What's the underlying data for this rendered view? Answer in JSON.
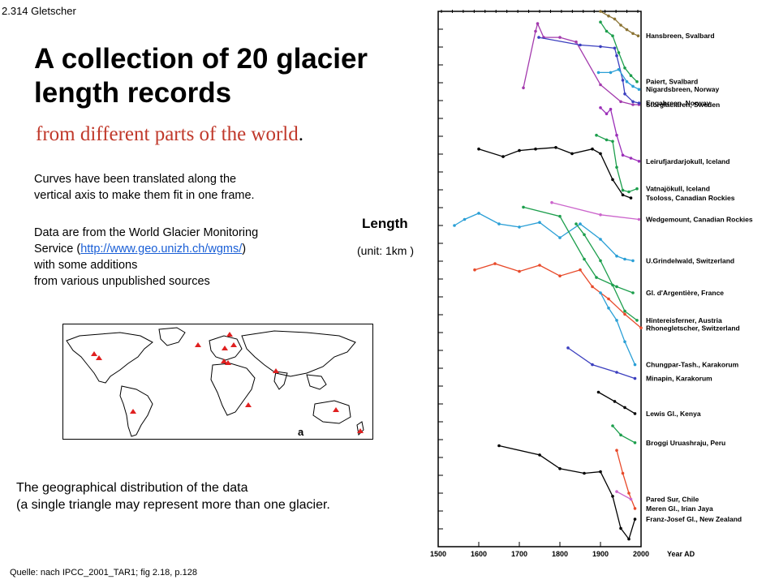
{
  "slide_ref": "2.314  Gletscher",
  "title": "A collection of 20 glacier length records",
  "subtitle": "from different parts of the world",
  "subtitle_end": ".",
  "paragraph1": [
    "Curves have been translated along the",
    "vertical axis to make them fit in one frame."
  ],
  "paragraph2": {
    "line1": "Data are from the World Glacier Monitoring",
    "service_pre": "Service (",
    "link": "http://www.geo.unizh.ch/wgms/",
    "service_post": ")",
    "line3": "with some additions",
    "line4": " from various unpublished sources"
  },
  "length_label": "Length",
  "unit_label": "(unit: 1km )",
  "map_label": "a",
  "geo_text": [
    "The geographical distribution of the data",
    "(a single triangle may represent more than one glacier."
  ],
  "source": "Quelle: nach  IPCC_2001_TAR1;  fig 2.18, p.128",
  "colors": {
    "subtitle": "#c0392b",
    "link": "#1a5fd6",
    "triangles": "#e02020"
  },
  "chart_data": {
    "type": "line",
    "x_label": "Year AD",
    "x_ticks": [
      1500,
      1600,
      1700,
      1800,
      1900,
      2000
    ],
    "xlim": [
      1500,
      2000
    ],
    "ylabel": "Length",
    "unit": "(unit: 1km )",
    "note": "Curves have been translated along the vertical axis to make them fit in one frame.",
    "series": [
      {
        "name": "Hansbreen, Svalbard",
        "color": "#8b7333",
        "points": [
          [
            1900,
            -0.0
          ],
          [
            1920,
            -0.6
          ],
          [
            1935,
            -1.0
          ],
          [
            1950,
            -1.8
          ],
          [
            1965,
            -2.4
          ],
          [
            1980,
            -2.9
          ],
          [
            1993,
            -3.2
          ]
        ]
      },
      {
        "name": "Paiert, Svalbard",
        "color": "#1c9e4c",
        "points": [
          [
            1900,
            -1.4
          ],
          [
            1915,
            -2.6
          ],
          [
            1930,
            -3.2
          ],
          [
            1945,
            -5.4
          ],
          [
            1960,
            -7.4
          ],
          [
            1975,
            -8.4
          ],
          [
            1990,
            -9.2
          ]
        ]
      },
      {
        "name": "Storglaciären, Sweden",
        "color": "#a33aad",
        "points": [
          [
            1710,
            -10.0
          ],
          [
            1740,
            -2.6
          ],
          [
            1745,
            -1.6
          ],
          [
            1760,
            -3.4
          ],
          [
            1800,
            -3.4
          ],
          [
            1840,
            -4.0
          ],
          [
            1900,
            -9.6
          ],
          [
            1950,
            -11.8
          ],
          [
            1980,
            -12.2
          ],
          [
            1995,
            -12.2
          ]
        ]
      },
      {
        "name": "Engabreen, Norway",
        "color": "#3b3fbf",
        "points": [
          [
            1748,
            -3.4
          ],
          [
            1850,
            -4.4
          ],
          [
            1900,
            -4.6
          ],
          [
            1935,
            -4.8
          ],
          [
            1940,
            -5.8
          ],
          [
            1955,
            -9.0
          ],
          [
            1960,
            -10.8
          ],
          [
            1980,
            -11.8
          ],
          [
            1995,
            -12.0
          ]
        ]
      },
      {
        "name": "Nigardsbreen, Norway",
        "color": "#2a9fd6",
        "points": [
          [
            1895,
            -8.0
          ],
          [
            1925,
            -8.0
          ],
          [
            1945,
            -7.6
          ],
          [
            1965,
            -9.2
          ],
          [
            1980,
            -9.8
          ],
          [
            1995,
            -10.2
          ]
        ]
      },
      {
        "name": "Leirufjardarjokull, Iceland",
        "color": "#9b2fb8",
        "points": [
          [
            1900,
            -12.6
          ],
          [
            1915,
            -13.4
          ],
          [
            1925,
            -12.8
          ],
          [
            1940,
            -16.2
          ],
          [
            1955,
            -18.8
          ],
          [
            1975,
            -19.2
          ],
          [
            1995,
            -19.6
          ]
        ]
      },
      {
        "name": "Vatnajökull, Iceland",
        "color": "#1c9e4c",
        "points": [
          [
            1890,
            -16.2
          ],
          [
            1915,
            -16.8
          ],
          [
            1930,
            -17.0
          ],
          [
            1940,
            -20.4
          ],
          [
            1955,
            -23.4
          ],
          [
            1970,
            -23.6
          ],
          [
            1990,
            -23.2
          ]
        ]
      },
      {
        "name": "Tsoloss, Canadian Rockies",
        "color": "#000000",
        "points": [
          [
            1600,
            -18.0
          ],
          [
            1660,
            -19.0
          ],
          [
            1700,
            -18.2
          ],
          [
            1740,
            -18.0
          ],
          [
            1790,
            -17.8
          ],
          [
            1830,
            -18.6
          ],
          [
            1880,
            -18.0
          ],
          [
            1900,
            -18.6
          ],
          [
            1930,
            -22.0
          ],
          [
            1955,
            -24.0
          ],
          [
            1975,
            -24.4
          ]
        ]
      },
      {
        "name": "Wedgemount, Canadian Rockies",
        "color": "#cc66cc",
        "points": [
          [
            1780,
            -25.0
          ],
          [
            1900,
            -26.6
          ],
          [
            1995,
            -27.2
          ]
        ]
      },
      {
        "name": "U.Grindelwald, Switzerland",
        "color": "#2a9fd6",
        "points": [
          [
            1540,
            -28.0
          ],
          [
            1565,
            -27.2
          ],
          [
            1600,
            -26.4
          ],
          [
            1650,
            -27.8
          ],
          [
            1700,
            -28.2
          ],
          [
            1750,
            -27.6
          ],
          [
            1800,
            -29.6
          ],
          [
            1850,
            -27.8
          ],
          [
            1900,
            -29.8
          ],
          [
            1940,
            -32.0
          ],
          [
            1960,
            -32.4
          ],
          [
            1980,
            -32.6
          ]
        ]
      },
      {
        "name": "Gl. d'Argentière, France",
        "color": "#1c9e4c",
        "points": [
          [
            1710,
            -25.6
          ],
          [
            1800,
            -26.8
          ],
          [
            1860,
            -32.4
          ],
          [
            1890,
            -34.8
          ],
          [
            1940,
            -36.0
          ],
          [
            1980,
            -36.8
          ]
        ]
      },
      {
        "name": "Hintereisferner, Austria",
        "color": "#1c9e4c",
        "points": [
          [
            1840,
            -27.8
          ],
          [
            1860,
            -29.2
          ],
          [
            1900,
            -32.6
          ],
          [
            1930,
            -35.8
          ],
          [
            1960,
            -39.2
          ],
          [
            1990,
            -40.4
          ]
        ]
      },
      {
        "name": "Rhonegletscher, Switzerland",
        "color": "#e84a2a",
        "points": [
          [
            1590,
            -33.8
          ],
          [
            1640,
            -33.0
          ],
          [
            1700,
            -34.0
          ],
          [
            1750,
            -33.2
          ],
          [
            1800,
            -34.6
          ],
          [
            1850,
            -33.8
          ],
          [
            1880,
            -36.0
          ],
          [
            1920,
            -37.6
          ],
          [
            1960,
            -39.6
          ],
          [
            2000,
            -41.4
          ]
        ]
      },
      {
        "name": "Chungpar-Tash., Karakorum",
        "color": "#2a9fd6",
        "points": [
          [
            1900,
            -36.8
          ],
          [
            1920,
            -38.8
          ],
          [
            1940,
            -40.4
          ],
          [
            1960,
            -43.2
          ],
          [
            1985,
            -46.2
          ]
        ]
      },
      {
        "name": "Minapin, Karakorum",
        "color": "#3b3fbf",
        "points": [
          [
            1820,
            -44.0
          ],
          [
            1880,
            -46.2
          ],
          [
            1940,
            -47.2
          ],
          [
            1985,
            -48.0
          ]
        ]
      },
      {
        "name": "Lewis Gl., Kenya",
        "color": "#000000",
        "points": [
          [
            1895,
            -49.8
          ],
          [
            1935,
            -51.0
          ],
          [
            1960,
            -51.8
          ],
          [
            1985,
            -52.6
          ]
        ]
      },
      {
        "name": "Broggi Uruashraju, Peru",
        "color": "#1c9e4c",
        "points": [
          [
            1930,
            -54.2
          ],
          [
            1950,
            -55.4
          ],
          [
            1985,
            -56.4
          ]
        ]
      },
      {
        "name": "Meren Gl., Irian Jaya",
        "color": "#e84a2a",
        "points": [
          [
            1940,
            -57.4
          ],
          [
            1955,
            -60.4
          ],
          [
            1970,
            -63.0
          ],
          [
            1985,
            -65.0
          ]
        ]
      },
      {
        "name": "Pared Sur, Chile",
        "color": "#cc66cc",
        "points": [
          [
            1940,
            -62.8
          ],
          [
            1975,
            -63.8
          ]
        ]
      },
      {
        "name": "Franz-Josef Gl., New Zealand",
        "color": "#000000",
        "points": [
          [
            1650,
            -56.8
          ],
          [
            1750,
            -58.0
          ],
          [
            1800,
            -59.8
          ],
          [
            1860,
            -60.4
          ],
          [
            1900,
            -60.2
          ],
          [
            1930,
            -63.4
          ],
          [
            1950,
            -67.6
          ],
          [
            1970,
            -69.0
          ],
          [
            1985,
            -66.4
          ]
        ]
      }
    ]
  }
}
